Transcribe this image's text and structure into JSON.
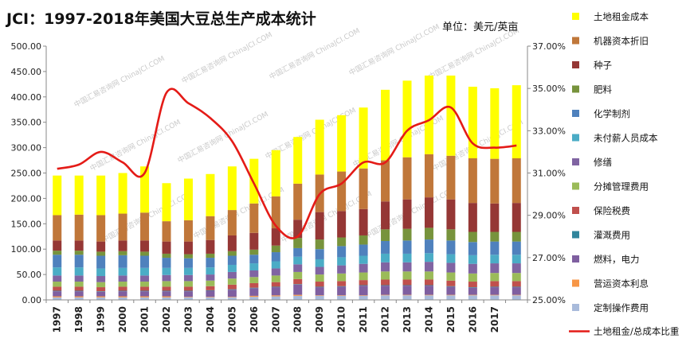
{
  "chart_data": {
    "type": "bar",
    "stacked": true,
    "title": "JCI：1997-2018年美国大豆总生产成本统计",
    "unit_label": "单位：美元/英亩",
    "categories": [
      "1997",
      "1998",
      "1999",
      "2000",
      "2001",
      "2002",
      "2003",
      "2004",
      "2005",
      "2006",
      "2007",
      "2008",
      "2009",
      "2010",
      "2011",
      "2012",
      "2013",
      "2014",
      "2015",
      "2016",
      "2017",
      ""
    ],
    "y_left": {
      "min": 0,
      "max": 500,
      "step": 50,
      "ticks": [
        "0.00",
        "50.00",
        "100.00",
        "150.00",
        "200.00",
        "250.00",
        "300.00",
        "350.00",
        "400.00",
        "450.00",
        "500.00"
      ]
    },
    "y_right": {
      "min": 25,
      "max": 37,
      "step": 2,
      "ticks": [
        "25.00%",
        "27.00%",
        "29.00%",
        "31.00%",
        "33.00%",
        "35.00%",
        "37.00%"
      ]
    },
    "series": [
      {
        "name": "定制操作费用",
        "color": "#A9BBDB",
        "values": [
          5,
          5,
          5,
          5,
          5,
          5,
          5,
          5,
          5,
          6,
          7,
          8,
          8,
          8,
          8,
          9,
          9,
          9,
          9,
          9,
          9,
          9
        ]
      },
      {
        "name": "营运资本利息",
        "color": "#F79646",
        "values": [
          2,
          2,
          2,
          2,
          2,
          2,
          1,
          1,
          1,
          2,
          2,
          2,
          1,
          1,
          1,
          1,
          1,
          1,
          1,
          1,
          1,
          1
        ]
      },
      {
        "name": "燃料，电力",
        "color": "#7F5FA0",
        "values": [
          10,
          10,
          9,
          10,
          10,
          10,
          11,
          12,
          14,
          15,
          16,
          20,
          16,
          17,
          19,
          18,
          18,
          18,
          16,
          14,
          15,
          15
        ]
      },
      {
        "name": "灌溉费用",
        "color": "#31859C",
        "values": [
          1,
          1,
          1,
          1,
          1,
          1,
          1,
          1,
          1,
          1,
          1,
          1,
          1,
          1,
          1,
          1,
          1,
          1,
          1,
          1,
          1,
          1
        ]
      },
      {
        "name": "保险税费",
        "color": "#C0504D",
        "values": [
          8,
          8,
          8,
          8,
          8,
          8,
          8,
          8,
          9,
          9,
          9,
          10,
          10,
          10,
          10,
          11,
          11,
          11,
          11,
          11,
          11,
          11
        ]
      },
      {
        "name": "分摊管理费用",
        "color": "#9BBB59",
        "values": [
          10,
          10,
          10,
          10,
          10,
          11,
          11,
          11,
          12,
          12,
          13,
          14,
          14,
          15,
          15,
          16,
          16,
          16,
          16,
          16,
          16,
          16
        ]
      },
      {
        "name": "修缮",
        "color": "#8064A2",
        "values": [
          12,
          12,
          12,
          12,
          12,
          12,
          12,
          12,
          13,
          13,
          14,
          15,
          15,
          16,
          17,
          18,
          18,
          19,
          19,
          19,
          19,
          19
        ]
      },
      {
        "name": "未付薪人员成本",
        "color": "#4BACC6",
        "values": [
          16,
          16,
          15,
          15,
          15,
          14,
          14,
          14,
          14,
          14,
          14,
          15,
          15,
          16,
          16,
          17,
          17,
          17,
          17,
          17,
          17,
          17
        ]
      },
      {
        "name": "化学制剂",
        "color": "#4F81BD",
        "values": [
          25,
          25,
          25,
          25,
          24,
          20,
          19,
          19,
          18,
          17,
          18,
          17,
          20,
          22,
          22,
          25,
          26,
          27,
          27,
          26,
          26,
          26
        ]
      },
      {
        "name": "肥料",
        "color": "#77933C",
        "values": [
          8,
          8,
          8,
          8,
          8,
          8,
          8,
          8,
          9,
          10,
          13,
          20,
          19,
          17,
          18,
          23,
          23,
          23,
          22,
          20,
          19,
          19
        ]
      },
      {
        "name": "种子",
        "color": "#953735",
        "values": [
          20,
          20,
          20,
          21,
          22,
          24,
          25,
          27,
          31,
          33,
          34,
          36,
          54,
          52,
          52,
          55,
          58,
          60,
          59,
          57,
          56,
          57
        ]
      },
      {
        "name": "机器资本折旧",
        "color": "#C0773A",
        "values": [
          50,
          51,
          52,
          53,
          55,
          40,
          42,
          47,
          50,
          58,
          63,
          71,
          74,
          78,
          80,
          81,
          83,
          85,
          86,
          88,
          88,
          88
        ]
      },
      {
        "name": "土地租金成本",
        "color": "#FFFF00",
        "values": [
          78,
          77,
          78,
          80,
          91,
          75,
          82,
          83,
          86,
          88,
          91,
          92,
          108,
          111,
          120,
          139,
          151,
          155,
          158,
          141,
          139,
          144
        ]
      }
    ],
    "line_series": {
      "name": "土地租金/总成本比重",
      "color": "#E41B17",
      "axis": "right",
      "values": [
        31.2,
        31.4,
        32.0,
        31.5,
        31.0,
        34.8,
        34.3,
        33.6,
        32.5,
        30.5,
        28.5,
        28.0,
        30.0,
        30.5,
        31.5,
        31.5,
        33.0,
        33.5,
        34.1,
        32.4,
        32.2,
        32.3
      ]
    },
    "watermark": "中国汇易咨询网 ChinaJCI.COM"
  }
}
